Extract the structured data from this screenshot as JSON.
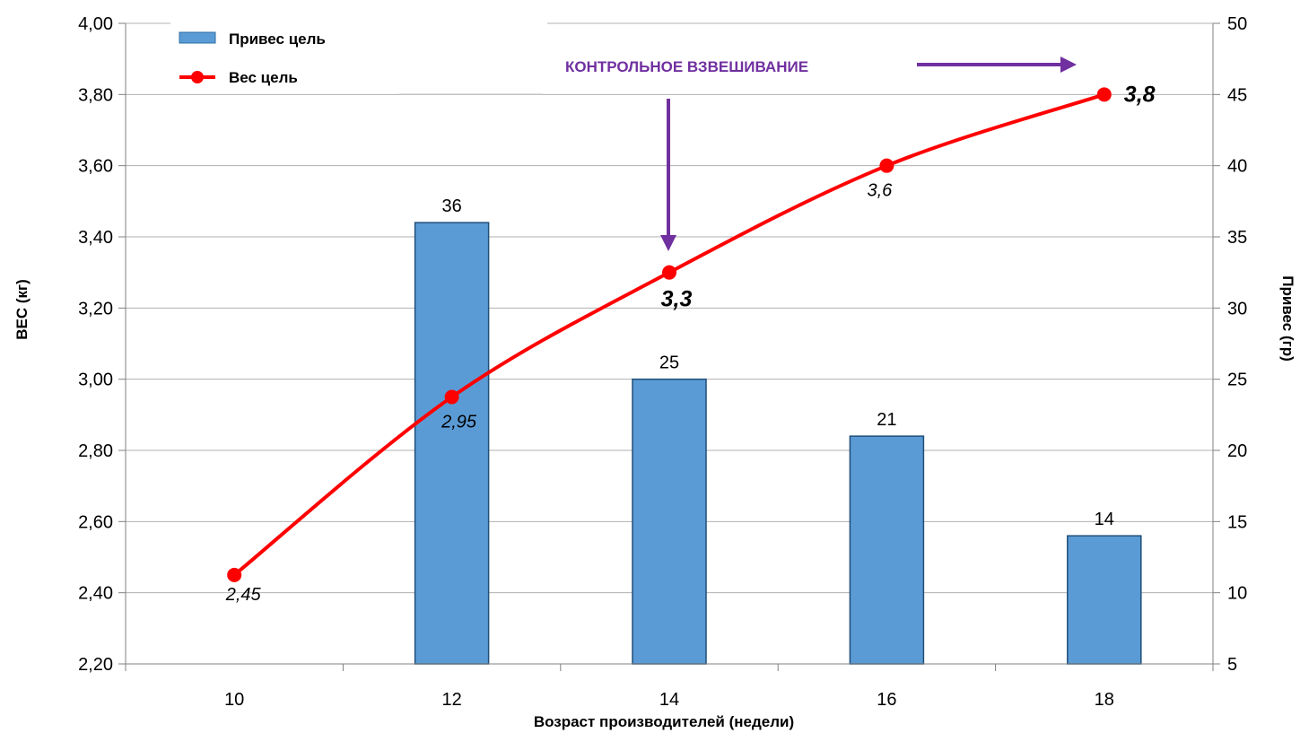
{
  "chart_data": {
    "type": "bar+line",
    "categories": [
      "10",
      "12",
      "14",
      "16",
      "18"
    ],
    "xlabel": "Возраст производителей (недели)",
    "ylabel_left": "ВЕС (кг)",
    "ylabel_right": "Привес (гр)",
    "ylim_left": [
      2.2,
      4.0
    ],
    "ylim_right": [
      5,
      50
    ],
    "yticks_left": [
      "2,20",
      "2,40",
      "2,60",
      "2,80",
      "3,00",
      "3,20",
      "3,40",
      "3,60",
      "3,80",
      "4,00"
    ],
    "yticks_right": [
      "5",
      "10",
      "15",
      "20",
      "25",
      "30",
      "35",
      "40",
      "45",
      "50"
    ],
    "grid": true,
    "legend_position": "top-left",
    "series": [
      {
        "name": "Привес цель",
        "type": "bar",
        "axis": "right",
        "color": "#5B9BD5",
        "values": [
          null,
          36,
          25,
          21,
          14
        ],
        "labels": [
          "",
          "36",
          "25",
          "21",
          "14"
        ]
      },
      {
        "name": "Вес цель",
        "type": "line",
        "axis": "left",
        "color": "#FF0000",
        "values": [
          2.45,
          2.95,
          3.3,
          3.6,
          3.8
        ],
        "labels": [
          "2,45",
          "2,95",
          "3,3",
          "3,6",
          "3,8"
        ]
      }
    ],
    "annotation": {
      "text": "КОНТРОЛЬНОЕ ВЗВЕШИВАНИЕ",
      "color": "#7030A0"
    }
  }
}
